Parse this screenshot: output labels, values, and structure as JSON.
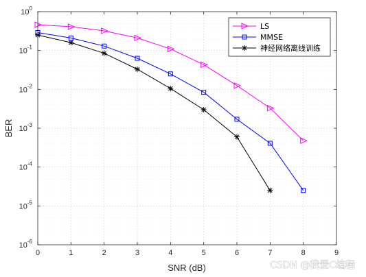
{
  "chart_data": {
    "type": "line",
    "title": "",
    "xlabel": "SNR (dB)",
    "ylabel": "BER",
    "x_ticks": [
      0,
      1,
      2,
      3,
      4,
      5,
      6,
      7,
      8,
      9
    ],
    "xlim": [
      0,
      9
    ],
    "y_scale": "log",
    "ylim": [
      1e-06,
      1
    ],
    "y_tick_exponents": [
      0,
      -1,
      -2,
      -3,
      -4,
      -5,
      -6
    ],
    "grid": "on (major and minor)",
    "legend_position": "top-right",
    "series": [
      {
        "name": "LS",
        "color": "#ff00ff",
        "marker": "triangle-right",
        "x": [
          0,
          1,
          2,
          3,
          4,
          5,
          6,
          7,
          8
        ],
        "values": [
          0.46,
          0.41,
          0.32,
          0.21,
          0.11,
          0.043,
          0.0125,
          0.0033,
          0.00048
        ]
      },
      {
        "name": "MMSE",
        "color": "#0000ff",
        "marker": "square",
        "x": [
          0,
          1,
          2,
          3,
          4,
          5,
          6,
          7,
          8
        ],
        "values": [
          0.29,
          0.21,
          0.13,
          0.063,
          0.025,
          0.0084,
          0.0017,
          0.00041,
          2.5e-05
        ]
      },
      {
        "name": "神经网络离线训练",
        "color": "#000000",
        "marker": "asterisk",
        "x": [
          0,
          1,
          2,
          3,
          4,
          5,
          6,
          7
        ],
        "values": [
          0.25,
          0.16,
          0.085,
          0.033,
          0.0105,
          0.003,
          0.0006,
          2.5e-05
        ]
      }
    ]
  },
  "watermark": "CSDN @我爱C编程"
}
